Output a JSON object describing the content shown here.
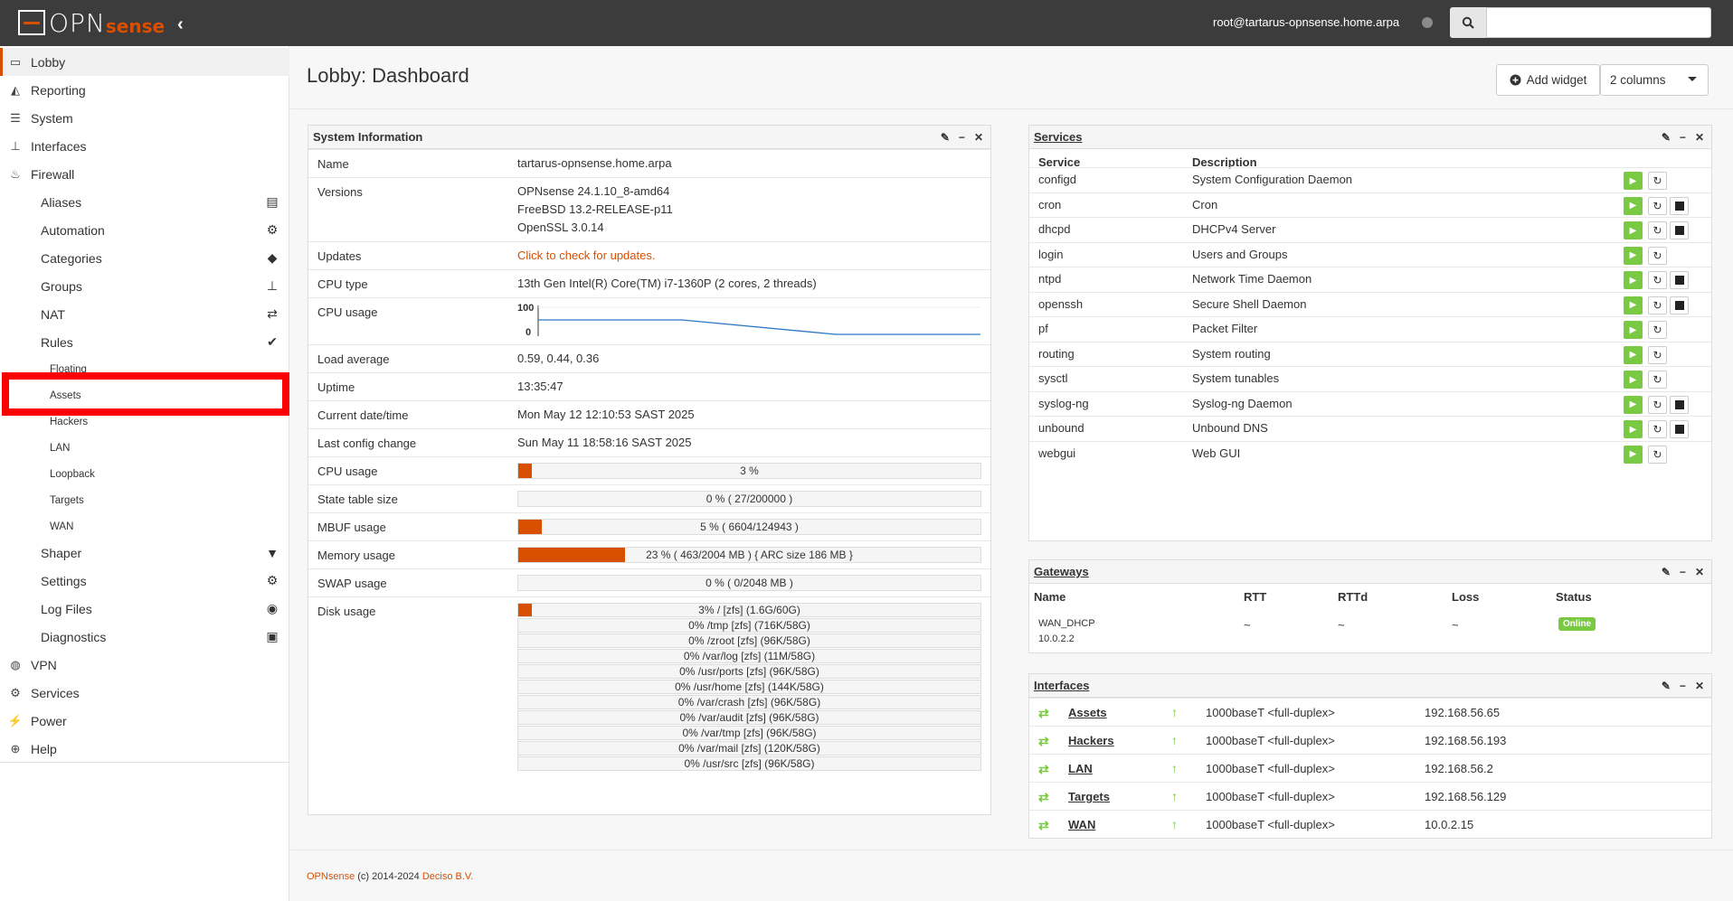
{
  "topbar": {
    "logo_opn": "OPN",
    "logo_sense": "sense",
    "collapse_icon": "‹",
    "user": "root@tartarus-opnsense.home.arpa",
    "search_placeholder": ""
  },
  "sidebar": {
    "main": [
      {
        "label": "Lobby",
        "icon": "laptop-icon"
      },
      {
        "label": "Reporting",
        "icon": "chart-icon"
      },
      {
        "label": "System",
        "icon": "server-icon"
      },
      {
        "label": "Interfaces",
        "icon": "sitemap-icon"
      },
      {
        "label": "Firewall",
        "icon": "fire-icon"
      }
    ],
    "firewall_sub": [
      {
        "label": "Aliases",
        "icon": "list-alt-icon"
      },
      {
        "label": "Automation",
        "icon": "cog-icon"
      },
      {
        "label": "Categories",
        "icon": "tags-icon"
      },
      {
        "label": "Groups",
        "icon": "sitemap-icon"
      },
      {
        "label": "NAT",
        "icon": "exchange-icon"
      },
      {
        "label": "Rules",
        "icon": "check-icon"
      }
    ],
    "rules_sub": [
      "Floating",
      "Assets",
      "Hackers",
      "LAN",
      "Loopback",
      "Targets",
      "WAN"
    ],
    "firewall_sub2": [
      {
        "label": "Shaper",
        "icon": "filter-icon"
      },
      {
        "label": "Settings",
        "icon": "cogs-icon"
      },
      {
        "label": "Log Files",
        "icon": "eye-icon"
      },
      {
        "label": "Diagnostics",
        "icon": "medkit-icon"
      }
    ],
    "bottom": [
      {
        "label": "VPN",
        "icon": "globe-icon"
      },
      {
        "label": "Services",
        "icon": "cog-icon"
      },
      {
        "label": "Power",
        "icon": "plug-icon"
      },
      {
        "label": "Help",
        "icon": "lifebuoy-icon"
      }
    ]
  },
  "header": {
    "title": "Lobby: Dashboard",
    "add_widget": "Add widget",
    "columns": "2 columns"
  },
  "system_info": {
    "title": "System Information",
    "name_label": "Name",
    "name": "tartarus-opnsense.home.arpa",
    "versions_label": "Versions",
    "versions": [
      "OPNsense 24.1.10_8-amd64",
      "FreeBSD 13.2-RELEASE-p11",
      "OpenSSL 3.0.14"
    ],
    "updates_label": "Updates",
    "updates": "Click to check for updates.",
    "cpu_type_label": "CPU type",
    "cpu_type": "13th Gen Intel(R) Core(TM) i7-1360P (2 cores, 2 threads)",
    "cpu_usage_chart_label": "CPU usage",
    "cpu_chart_ymax": "100",
    "cpu_chart_ymin": "0",
    "load_label": "Load average",
    "load": "0.59, 0.44, 0.36",
    "uptime_label": "Uptime",
    "uptime": "13:35:47",
    "datetime_label": "Current date/time",
    "datetime": "Mon May 12 12:10:53 SAST 2025",
    "lastcfg_label": "Last config change",
    "lastcfg": "Sun May 11 18:58:16 SAST 2025",
    "cpu_bar_label": "CPU usage",
    "cpu_bar_text": "3 %",
    "cpu_bar_pct": 3,
    "state_label": "State table size",
    "state_text": "0 % ( 27/200000 )",
    "state_pct": 0,
    "mbuf_label": "MBUF usage",
    "mbuf_text": "5 % ( 6604/124943 )",
    "mbuf_pct": 5,
    "mem_label": "Memory usage",
    "mem_text": "23 % ( 463/2004 MB ) { ARC size 186 MB }",
    "mem_pct": 23,
    "swap_label": "SWAP usage",
    "swap_text": "0 % ( 0/2048 MB )",
    "swap_pct": 0,
    "disk_label": "Disk usage",
    "disks": [
      {
        "text": "3% / [zfs] (1.6G/60G)",
        "pct": 3
      },
      {
        "text": "0% /tmp [zfs] (716K/58G)",
        "pct": 0
      },
      {
        "text": "0% /zroot [zfs] (96K/58G)",
        "pct": 0
      },
      {
        "text": "0% /var/log [zfs] (11M/58G)",
        "pct": 0
      },
      {
        "text": "0% /usr/ports [zfs] (96K/58G)",
        "pct": 0
      },
      {
        "text": "0% /usr/home [zfs] (144K/58G)",
        "pct": 0
      },
      {
        "text": "0% /var/crash [zfs] (96K/58G)",
        "pct": 0
      },
      {
        "text": "0% /var/audit [zfs] (96K/58G)",
        "pct": 0
      },
      {
        "text": "0% /var/tmp [zfs] (96K/58G)",
        "pct": 0
      },
      {
        "text": "0% /var/mail [zfs] (120K/58G)",
        "pct": 0
      },
      {
        "text": "0% /usr/src [zfs] (96K/58G)",
        "pct": 0
      }
    ]
  },
  "services": {
    "title": "Services",
    "col_service": "Service",
    "col_desc": "Description",
    "rows": [
      {
        "name": "configd",
        "desc": "System Configuration Daemon",
        "stop": false
      },
      {
        "name": "cron",
        "desc": "Cron",
        "stop": true
      },
      {
        "name": "dhcpd",
        "desc": "DHCPv4 Server",
        "stop": true
      },
      {
        "name": "login",
        "desc": "Users and Groups",
        "stop": false
      },
      {
        "name": "ntpd",
        "desc": "Network Time Daemon",
        "stop": true
      },
      {
        "name": "openssh",
        "desc": "Secure Shell Daemon",
        "stop": true
      },
      {
        "name": "pf",
        "desc": "Packet Filter",
        "stop": false
      },
      {
        "name": "routing",
        "desc": "System routing",
        "stop": false
      },
      {
        "name": "sysctl",
        "desc": "System tunables",
        "stop": false
      },
      {
        "name": "syslog-ng",
        "desc": "Syslog-ng Daemon",
        "stop": true
      },
      {
        "name": "unbound",
        "desc": "Unbound DNS",
        "stop": true
      },
      {
        "name": "webgui",
        "desc": "Web GUI",
        "stop": false
      }
    ]
  },
  "gateways": {
    "title": "Gateways",
    "cols": [
      "Name",
      "RTT",
      "RTTd",
      "Loss",
      "Status"
    ],
    "row": {
      "name": "WAN_DHCP",
      "ip": "10.0.2.2",
      "rtt": "~",
      "rttd": "~",
      "loss": "~",
      "status": "Online"
    }
  },
  "interfaces": {
    "title": "Interfaces",
    "rows": [
      {
        "name": "Assets",
        "media": "1000baseT <full-duplex>",
        "ip": "192.168.56.65"
      },
      {
        "name": "Hackers",
        "media": "1000baseT <full-duplex>",
        "ip": "192.168.56.193"
      },
      {
        "name": "LAN",
        "media": "1000baseT <full-duplex>",
        "ip": "192.168.56.2"
      },
      {
        "name": "Targets",
        "media": "1000baseT <full-duplex>",
        "ip": "192.168.56.129"
      },
      {
        "name": "WAN",
        "media": "1000baseT <full-duplex>",
        "ip": "10.0.2.15"
      }
    ]
  },
  "footer": {
    "brand": "OPNsense",
    "copy": " (c) 2014-2024 ",
    "company": "Deciso B.V."
  },
  "colors": {
    "accent": "#d94f00",
    "topbar": "#3c3c3c",
    "green": "#7ac943"
  }
}
